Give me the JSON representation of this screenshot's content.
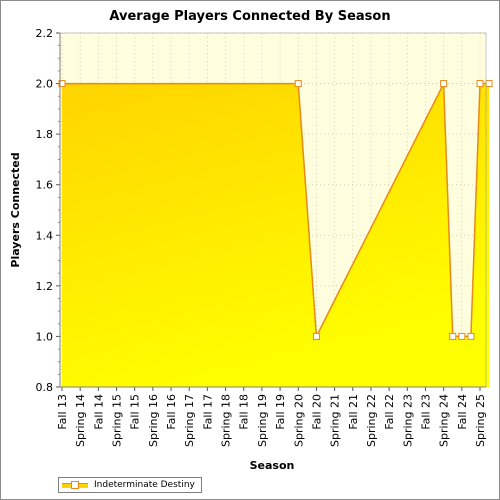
{
  "chart_data": {
    "type": "area",
    "title": "Average Players Connected By Season",
    "xlabel": "Season",
    "ylabel": "Players Connected",
    "ylim": [
      0.8,
      2.2
    ],
    "yticks": [
      "0.8",
      "1.0",
      "1.2",
      "1.4",
      "1.6",
      "1.8",
      "2.0",
      "2.2"
    ],
    "categories": [
      "Fall 13",
      "Spring 14",
      "Fall 14",
      "Spring 15",
      "Fall 15",
      "Spring 16",
      "Fall 16",
      "Spring 17",
      "Fall 17",
      "Spring 18",
      "Fall 18",
      "Spring 19",
      "Fall 19",
      "Spring 20",
      "Fall 20",
      "Spring 21",
      "Fall 21",
      "Spring 22",
      "Fall 22",
      "Spring 23",
      "Fall 23",
      "Spring 24",
      "Fall 24",
      "Spring 25"
    ],
    "series": [
      {
        "name": "Indeterminate Destiny",
        "points": [
          {
            "x": "Fall 13",
            "y": 2.0
          },
          {
            "x": "Spring 20",
            "y": 2.0
          },
          {
            "x": "Fall 20",
            "y": 1.0
          },
          {
            "x": "Spring 24",
            "y": 2.0
          },
          {
            "x": "Spring 24",
            "y": 1.0
          },
          {
            "x": "Fall 24",
            "y": 1.0
          },
          {
            "x": "Fall 24",
            "y": 1.0
          },
          {
            "x": "Spring 25",
            "y": 2.0
          },
          {
            "x": "Spring 25",
            "y": 2.0
          }
        ]
      }
    ],
    "grid": true,
    "legend_position": "bottom-left",
    "colors": {
      "fill_top": "#ffd400",
      "fill_bottom": "#ffff00",
      "line": "#e8891a",
      "plot_background": "#ffffe0",
      "grid": "#c8c8a0"
    }
  }
}
